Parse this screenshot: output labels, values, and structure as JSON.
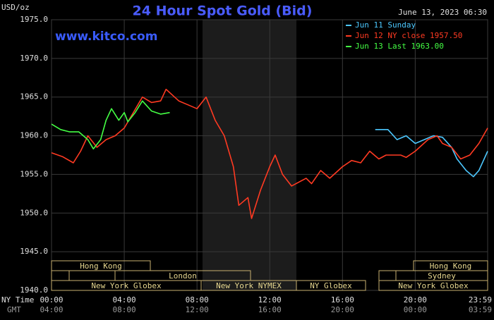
{
  "chart_data": {
    "type": "line",
    "title": "24 Hour Spot Gold (Bid)",
    "timestamp": "June 13, 2023 06:30",
    "watermark": "www.kitco.com",
    "y_label": "USD/oz",
    "x_row_labels": [
      "NY Time",
      "GMT"
    ],
    "xlim": [
      0,
      23.983
    ],
    "ylim": [
      1940,
      1975
    ],
    "xticks": [
      {
        "value": 0,
        "label": "00:00"
      },
      {
        "value": 4,
        "label": "04:00"
      },
      {
        "value": 8,
        "label": "08:00"
      },
      {
        "value": 12,
        "label": "12:00"
      },
      {
        "value": 16,
        "label": "16:00"
      },
      {
        "value": 20,
        "label": "20:00"
      },
      {
        "value": 23.983,
        "label": "23:59"
      }
    ],
    "xticks_gmt": [
      "04:00",
      "08:00",
      "12:00",
      "16:00",
      "20:00",
      "00:00",
      "03:59"
    ],
    "yticks": [
      {
        "value": 1940,
        "label": "1940.0"
      },
      {
        "value": 1945,
        "label": "1945.0"
      },
      {
        "value": 1950,
        "label": "1950.0"
      },
      {
        "value": 1955,
        "label": "1955.0"
      },
      {
        "value": 1960,
        "label": "1960.0"
      },
      {
        "value": 1965,
        "label": "1965.0"
      },
      {
        "value": 1970,
        "label": "1970.0"
      },
      {
        "value": 1975,
        "label": "1975.0"
      }
    ],
    "grid": true,
    "legend": "top-right",
    "sessions": [
      "Hong Kong",
      "London",
      "New York Globex",
      "New York NYMEX",
      "NY Globex",
      "Hong Kong",
      "Sydney",
      "New York Globex"
    ],
    "series": [
      {
        "name": "Jun 11 Sunday",
        "color": "#4cc8ff",
        "x": [
          17.8,
          18.5,
          19,
          19.5,
          20,
          20.5,
          21,
          21.5,
          22,
          22.3,
          22.8,
          23.2,
          23.5,
          23.983
        ],
        "values": [
          1960.8,
          1960.8,
          1959.5,
          1960,
          1959,
          1959.5,
          1960,
          1959.8,
          1958.5,
          1957,
          1955.5,
          1954.7,
          1955.5,
          1958
        ]
      },
      {
        "name": "Jun 12 NY close 1957.50",
        "color": "#ff3a22",
        "x": [
          0,
          0.6,
          1.2,
          1.6,
          2,
          2.5,
          3,
          3.5,
          4,
          4.5,
          5,
          5.5,
          6,
          6.3,
          7,
          7.5,
          8,
          8.5,
          9,
          9.5,
          10,
          10.3,
          10.8,
          11,
          11.5,
          12,
          12.3,
          12.7,
          13.2,
          14,
          14.3,
          14.8,
          15.3,
          16,
          16.5,
          17,
          17.5,
          18,
          18.4,
          19.2,
          19.5,
          20,
          20.7,
          21.2,
          21.5,
          22,
          22.5,
          23,
          23.5,
          23.983
        ],
        "values": [
          1957.8,
          1957.3,
          1956.5,
          1958,
          1960,
          1958.5,
          1959.5,
          1960,
          1961,
          1963,
          1965,
          1964.3,
          1964.5,
          1966,
          1964.5,
          1964,
          1963.5,
          1965,
          1962,
          1960,
          1956,
          1951,
          1952,
          1949.3,
          1953,
          1956,
          1957.5,
          1955,
          1953.5,
          1954.5,
          1953.8,
          1955.5,
          1954.5,
          1956,
          1956.8,
          1956.5,
          1958,
          1957,
          1957.5,
          1957.5,
          1957.2,
          1958,
          1959.5,
          1960,
          1959,
          1958.5,
          1957,
          1957.5,
          1959,
          1961
        ]
      },
      {
        "name": "Jun 13 Last 1963.00",
        "color": "#44ff44",
        "x": [
          0,
          0.5,
          1,
          1.5,
          2,
          2.3,
          2.7,
          3,
          3.3,
          3.7,
          4,
          4.2,
          4.6,
          5,
          5.5,
          6,
          6.5
        ],
        "values": [
          1961.5,
          1960.8,
          1960.5,
          1960.5,
          1959.5,
          1958.3,
          1959.5,
          1962,
          1963.5,
          1962,
          1963,
          1961.8,
          1963,
          1964.5,
          1963.2,
          1962.8,
          1963
        ]
      }
    ]
  }
}
